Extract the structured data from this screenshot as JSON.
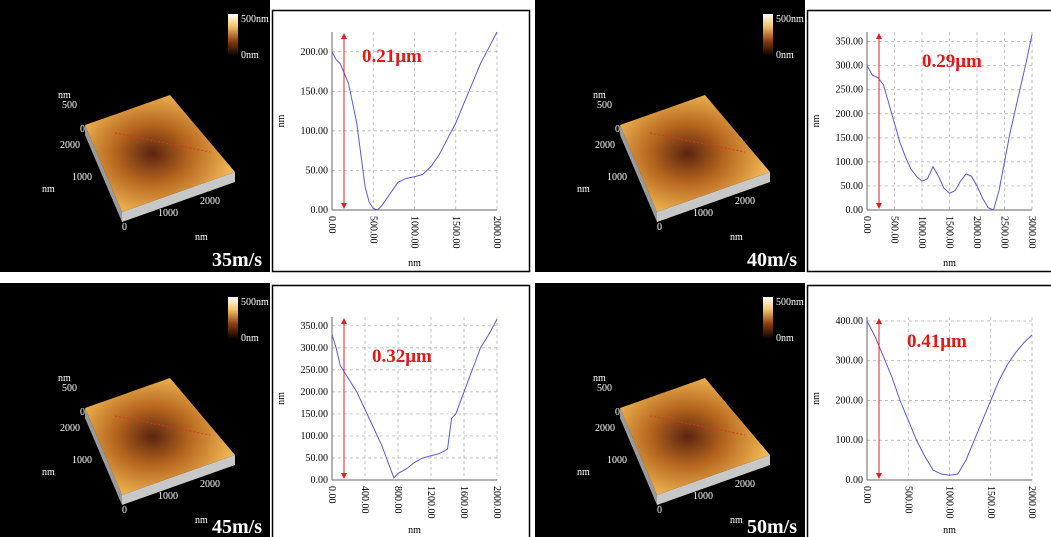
{
  "chart_data": [
    {
      "type": "line",
      "annotation": "0.21μm",
      "x_label": "nm",
      "y_label": "nm",
      "x": [
        0,
        50,
        100,
        200,
        300,
        350,
        400,
        450,
        500,
        550,
        600,
        700,
        800,
        900,
        1000,
        1100,
        1200,
        1300,
        1400,
        1500,
        1600,
        1700,
        1800,
        1900,
        2000
      ],
      "series": [
        {
          "color": "#5a5ad2",
          "values": [
            200,
            190,
            185,
            160,
            110,
            70,
            30,
            10,
            2,
            0,
            5,
            20,
            35,
            40,
            42,
            45,
            55,
            70,
            90,
            110,
            135,
            160,
            185,
            205,
            225
          ]
        }
      ],
      "xlim": [
        0,
        2000
      ],
      "ylim": [
        0,
        225
      ],
      "xticks": [
        {
          "value": 0,
          "label": "0.00"
        },
        {
          "value": 500,
          "label": "500.00"
        },
        {
          "value": 1000,
          "label": "1000.00"
        },
        {
          "value": 1500,
          "label": "1500.00"
        },
        {
          "value": 2000,
          "label": "2000.00"
        }
      ],
      "yticks": [
        {
          "value": 0,
          "label": "0.00"
        },
        {
          "value": 50,
          "label": "50.00"
        },
        {
          "value": 100,
          "label": "100.00"
        },
        {
          "value": 150,
          "label": "150.00"
        },
        {
          "value": 200,
          "label": "200.00"
        }
      ],
      "grid": true
    },
    {
      "type": "line",
      "annotation": "0.29μm",
      "x_label": "nm",
      "y_label": "nm",
      "x": [
        0,
        100,
        200,
        300,
        400,
        500,
        600,
        700,
        800,
        900,
        1000,
        1100,
        1200,
        1300,
        1400,
        1500,
        1600,
        1700,
        1800,
        1900,
        2000,
        2100,
        2200,
        2300,
        2400,
        2500,
        2600,
        2700,
        2800,
        2900,
        3000
      ],
      "series": [
        {
          "color": "#5a5ad2",
          "values": [
            300,
            280,
            275,
            260,
            220,
            180,
            140,
            110,
            85,
            70,
            60,
            65,
            90,
            70,
            45,
            35,
            40,
            60,
            75,
            70,
            50,
            25,
            5,
            0,
            40,
            100,
            160,
            210,
            260,
            310,
            365
          ]
        }
      ],
      "xlim": [
        0,
        3000
      ],
      "ylim": [
        0,
        370
      ],
      "xticks": [
        {
          "value": 0,
          "label": "0.00"
        },
        {
          "value": 500,
          "label": "500.00"
        },
        {
          "value": 1000,
          "label": "1000.00"
        },
        {
          "value": 1500,
          "label": "1500.00"
        },
        {
          "value": 2000,
          "label": "2000.00"
        },
        {
          "value": 2500,
          "label": "2500.00"
        },
        {
          "value": 3000,
          "label": "3000.00"
        }
      ],
      "yticks": [
        {
          "value": 0,
          "label": "0.00"
        },
        {
          "value": 50,
          "label": "50.00"
        },
        {
          "value": 100,
          "label": "100.00"
        },
        {
          "value": 150,
          "label": "150.00"
        },
        {
          "value": 200,
          "label": "200.00"
        },
        {
          "value": 250,
          "label": "250.00"
        },
        {
          "value": 300,
          "label": "300.00"
        },
        {
          "value": 350,
          "label": "350.00"
        }
      ],
      "grid": true
    },
    {
      "type": "line",
      "annotation": "0.32μm",
      "x_label": "nm",
      "y_label": "nm",
      "x": [
        0,
        50,
        100,
        200,
        300,
        400,
        500,
        600,
        700,
        750,
        800,
        900,
        1000,
        1100,
        1200,
        1300,
        1400,
        1450,
        1500,
        1600,
        1700,
        1800,
        1900,
        2000
      ],
      "series": [
        {
          "color": "#5a5ad2",
          "values": [
            330,
            300,
            260,
            230,
            200,
            160,
            120,
            80,
            30,
            5,
            15,
            25,
            40,
            50,
            55,
            60,
            70,
            140,
            150,
            200,
            250,
            300,
            330,
            365
          ]
        }
      ],
      "xlim": [
        0,
        2000
      ],
      "ylim": [
        0,
        370
      ],
      "xticks": [
        {
          "value": 0,
          "label": "0.00"
        },
        {
          "value": 400,
          "label": "400.00"
        },
        {
          "value": 800,
          "label": "800.00"
        },
        {
          "value": 1200,
          "label": "1200.00"
        },
        {
          "value": 1600,
          "label": "1600.00"
        },
        {
          "value": 2000,
          "label": "2000.00"
        }
      ],
      "yticks": [
        {
          "value": 0,
          "label": "0.00"
        },
        {
          "value": 50,
          "label": "50.00"
        },
        {
          "value": 100,
          "label": "100.00"
        },
        {
          "value": 150,
          "label": "150.00"
        },
        {
          "value": 200,
          "label": "200.00"
        },
        {
          "value": 250,
          "label": "250.00"
        },
        {
          "value": 300,
          "label": "300.00"
        },
        {
          "value": 350,
          "label": "350.00"
        }
      ],
      "grid": true
    },
    {
      "type": "line",
      "annotation": "0.41μm",
      "x_label": "nm",
      "y_label": "nm",
      "x": [
        0,
        100,
        200,
        300,
        400,
        500,
        600,
        700,
        800,
        900,
        1000,
        1100,
        1200,
        1300,
        1400,
        1500,
        1600,
        1700,
        1800,
        1900,
        2000
      ],
      "series": [
        {
          "color": "#5a5ad2",
          "values": [
            400,
            360,
            310,
            260,
            200,
            150,
            100,
            60,
            25,
            15,
            12,
            15,
            50,
            100,
            150,
            200,
            250,
            290,
            320,
            345,
            365
          ]
        }
      ],
      "xlim": [
        0,
        2000
      ],
      "ylim": [
        0,
        410
      ],
      "xticks": [
        {
          "value": 0,
          "label": "0.00"
        },
        {
          "value": 500,
          "label": "500.00"
        },
        {
          "value": 1000,
          "label": "1000.00"
        },
        {
          "value": 1500,
          "label": "1500.00"
        },
        {
          "value": 2000,
          "label": "2000.00"
        }
      ],
      "yticks": [
        {
          "value": 0,
          "label": "0.00"
        },
        {
          "value": 100,
          "label": "100.00"
        },
        {
          "value": 200,
          "label": "200.00"
        },
        {
          "value": 300,
          "label": "300.00"
        },
        {
          "value": 400,
          "label": "400.00"
        }
      ],
      "grid": true
    }
  ],
  "afm_images": [
    {
      "scale_max": "500nm",
      "scale_min": "0nm",
      "z_label": "nm",
      "z_ticks": [
        "500",
        "0"
      ],
      "y_ticks": [
        "2000",
        "1000",
        "0"
      ],
      "y_label": "nm",
      "x_ticks": [
        "1000",
        "2000"
      ],
      "x_label": "nm",
      "speed": "35m/s"
    },
    {
      "scale_max": "500nm",
      "scale_min": "0nm",
      "z_label": "nm",
      "z_ticks": [
        "500",
        "0"
      ],
      "y_ticks": [
        "2000",
        "1000",
        "0"
      ],
      "y_label": "nm",
      "x_ticks": [
        "1000",
        "2000"
      ],
      "x_label": "nm",
      "speed": "40m/s"
    },
    {
      "scale_max": "500nm",
      "scale_min": "0nm",
      "z_label": "nm",
      "z_ticks": [
        "500",
        "0"
      ],
      "y_ticks": [
        "2000",
        "1000",
        "0"
      ],
      "y_label": "nm",
      "x_ticks": [
        "1000",
        "2000"
      ],
      "x_label": "nm",
      "speed": "45m/s"
    },
    {
      "scale_max": "500nm",
      "scale_min": "0nm",
      "z_label": "nm",
      "z_ticks": [
        "500",
        "0"
      ],
      "y_ticks": [
        "2000",
        "1000",
        "0"
      ],
      "y_label": "nm",
      "x_ticks": [
        "1000",
        "2000"
      ],
      "x_label": "nm",
      "speed": "50m/s"
    }
  ]
}
